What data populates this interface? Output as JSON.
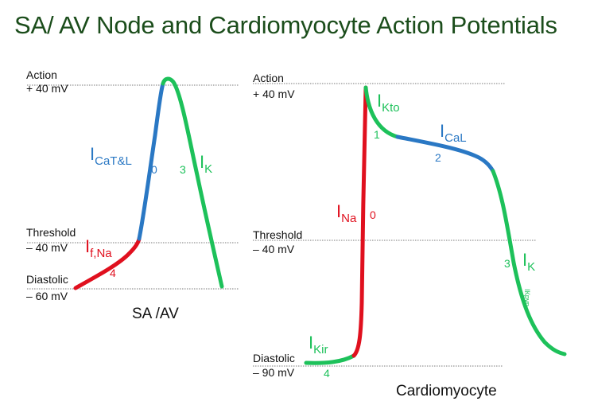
{
  "title": "SA/ AV Node and Cardiomyocyte Action Potentials",
  "colors": {
    "red": "#e0101e",
    "blue": "#2a78c4",
    "green": "#1dc15a",
    "dark_green": "#1b4d1b",
    "line": "#7a7a7a"
  },
  "sa_av": {
    "caption": "SA /AV",
    "levels": {
      "action": {
        "word": "Action",
        "value": "+ 40 mV"
      },
      "threshold": {
        "word": "Threshold",
        "value": "– 40 mV"
      },
      "diastolic": {
        "word": "Diastolic",
        "value": "– 60 mV"
      }
    },
    "currents": {
      "ica": {
        "base": "I",
        "sub": "CaT&L",
        "phase": "0"
      },
      "ik": {
        "base": "I",
        "sub": "K",
        "phase": "3"
      },
      "if": {
        "base": "I",
        "sub": "f,Na",
        "phase": "4"
      }
    }
  },
  "cardiomyocyte": {
    "caption": "Cardiomyocyte",
    "levels": {
      "action": {
        "word": "Action",
        "value": "+ 40 mV"
      },
      "threshold": {
        "word": "Threshold",
        "value": "– 40 mV"
      },
      "diastolic": {
        "word": "Diastolic",
        "value": "– 90 mV"
      }
    },
    "currents": {
      "ikto": {
        "base": "I",
        "sub": "Kto",
        "phase": "1"
      },
      "ical": {
        "base": "I",
        "sub": "CaL",
        "phase": "2"
      },
      "ina": {
        "base": "I",
        "sub": "Na",
        "phase": "0"
      },
      "ik": {
        "base": "I",
        "sub": "K",
        "phase": "3",
        "extra": "ΙКрур"
      },
      "ikir": {
        "base": "I",
        "sub": "Kir",
        "phase": "4"
      }
    }
  }
}
